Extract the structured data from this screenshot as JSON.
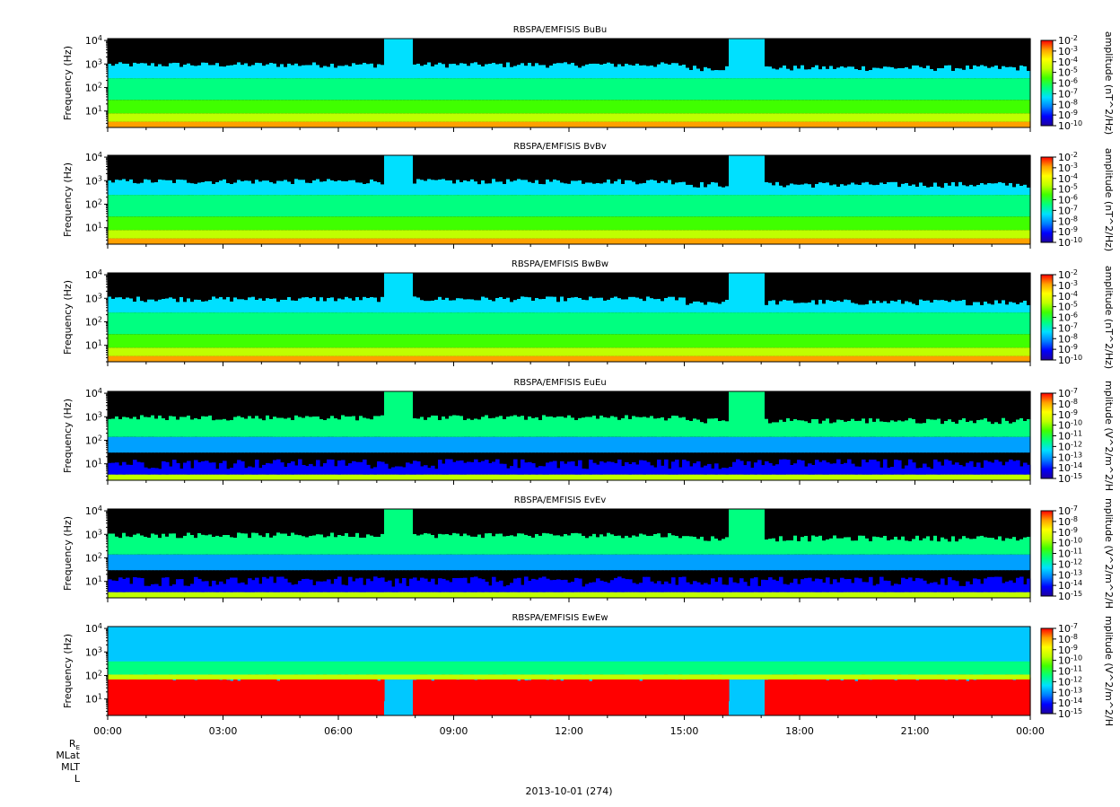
{
  "chart_data": {
    "type": "heatmap",
    "x_axis": {
      "label": "2013-10-01 (274)",
      "range": [
        "00:00",
        "24:00"
      ],
      "tick_labels": [
        "00:00",
        "03:00",
        "06:00",
        "09:00",
        "12:00",
        "15:00",
        "18:00",
        "21:00",
        "00:00"
      ],
      "ephemeris_rows": [
        "R_E",
        "MLat",
        "MLT",
        "L"
      ]
    },
    "panels": [
      {
        "title": "RBSPA/EMFISIS  BuBu",
        "ylabel": "Frequency (Hz)",
        "yscale": "log",
        "ylim": [
          2,
          12000
        ],
        "y_tick_labels": [
          "10^4",
          "10^3",
          "10^2",
          "10^1"
        ],
        "colorbar": {
          "label": "amplitude (nT^2/Hz)",
          "scale": "log",
          "range": [
            "10^-10",
            "10^-2"
          ],
          "tick_labels": [
            "10^-2",
            "10^-3",
            "10^-4",
            "10^-5",
            "10^-6",
            "10^-7",
            "10^-8",
            "10^-9",
            "10^-10"
          ]
        }
      },
      {
        "title": "RBSPA/EMFISIS  BvBv",
        "ylabel": "Frequency (Hz)",
        "yscale": "log",
        "ylim": [
          2,
          12000
        ],
        "y_tick_labels": [
          "10^4",
          "10^3",
          "10^2",
          "10^1"
        ],
        "colorbar": {
          "label": "amplitude (nT^2/Hz)",
          "scale": "log",
          "range": [
            "10^-10",
            "10^-2"
          ],
          "tick_labels": [
            "10^-2",
            "10^-3",
            "10^-4",
            "10^-5",
            "10^-6",
            "10^-7",
            "10^-8",
            "10^-9",
            "10^-10"
          ]
        }
      },
      {
        "title": "RBSPA/EMFISIS  BwBw",
        "ylabel": "Frequency (Hz)",
        "yscale": "log",
        "ylim": [
          2,
          12000
        ],
        "y_tick_labels": [
          "10^4",
          "10^3",
          "10^2",
          "10^1"
        ],
        "colorbar": {
          "label": "amplitude (nT^2/Hz)",
          "scale": "log",
          "range": [
            "10^-10",
            "10^-2"
          ],
          "tick_labels": [
            "10^-2",
            "10^-3",
            "10^-4",
            "10^-5",
            "10^-6",
            "10^-7",
            "10^-8",
            "10^-9",
            "10^-10"
          ]
        }
      },
      {
        "title": "RBSPA/EMFISIS  EuEu",
        "ylabel": "Frequency (Hz)",
        "yscale": "log",
        "ylim": [
          2,
          12000
        ],
        "y_tick_labels": [
          "10^4",
          "10^3",
          "10^2",
          "10^1"
        ],
        "colorbar": {
          "label": "mplitude (V^2/m^2/H",
          "scale": "log",
          "range": [
            "10^-15",
            "10^-7"
          ],
          "tick_labels": [
            "10^-7",
            "10^-8",
            "10^-9",
            "10^-10",
            "10^-11",
            "10^-12",
            "10^-13",
            "10^-14",
            "10^-15"
          ]
        }
      },
      {
        "title": "RBSPA/EMFISIS  EvEv",
        "ylabel": "Frequency (Hz)",
        "yscale": "log",
        "ylim": [
          2,
          12000
        ],
        "y_tick_labels": [
          "10^4",
          "10^3",
          "10^2",
          "10^1"
        ],
        "colorbar": {
          "label": "mplitude (V^2/m^2/H",
          "scale": "log",
          "range": [
            "10^-15",
            "10^-7"
          ],
          "tick_labels": [
            "10^-7",
            "10^-8",
            "10^-9",
            "10^-10",
            "10^-11",
            "10^-12",
            "10^-13",
            "10^-14",
            "10^-15"
          ]
        }
      },
      {
        "title": "RBSPA/EMFISIS  EwEw",
        "ylabel": "Frequency (Hz)",
        "yscale": "log",
        "ylim": [
          2,
          12000
        ],
        "y_tick_labels": [
          "10^4",
          "10^3",
          "10^2",
          "10^1"
        ],
        "colorbar": {
          "label": "mplitude (V^2/m^2/H",
          "scale": "log",
          "range": [
            "10^-15",
            "10^-7"
          ],
          "tick_labels": [
            "10^-7",
            "10^-8",
            "10^-9",
            "10^-10",
            "10^-11",
            "10^-12",
            "10^-13",
            "10^-14",
            "10^-15"
          ]
        }
      }
    ],
    "colormap": [
      "#1e00a0",
      "#0000ff",
      "#0080ff",
      "#00e0ff",
      "#00ff80",
      "#40ff00",
      "#c0ff00",
      "#ffff00",
      "#ffa000",
      "#ff0000"
    ]
  }
}
